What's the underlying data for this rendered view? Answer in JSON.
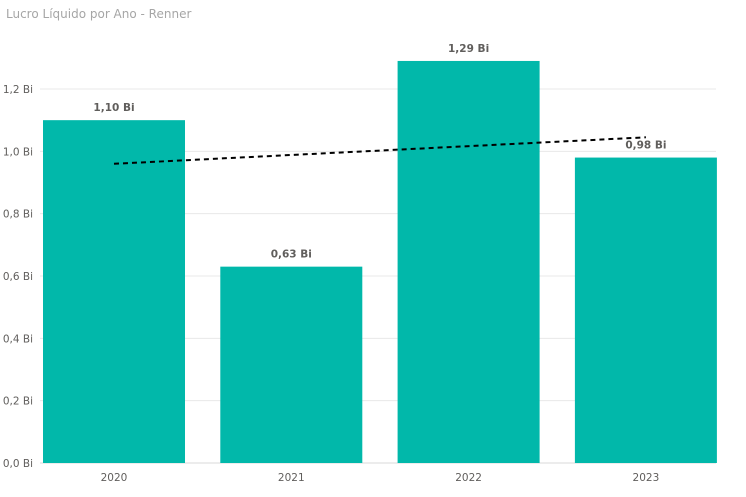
{
  "chart_data": {
    "type": "bar",
    "title": "Lucro Líquido por Ano - Renner",
    "categories": [
      "2020",
      "2021",
      "2022",
      "2023"
    ],
    "values": [
      1.1,
      0.63,
      1.29,
      0.98
    ],
    "data_labels": [
      "1,10 Bi",
      "0,63 Bi",
      "1,29 Bi",
      "0,98 Bi"
    ],
    "yticks": [
      0,
      0.2,
      0.4,
      0.6,
      0.8,
      1.0,
      1.2
    ],
    "ytick_labels": [
      "0,0 Bi",
      "0,2 Bi",
      "0,4 Bi",
      "0,6 Bi",
      "0,8 Bi",
      "1,0 Bi",
      "1,2 Bi"
    ],
    "ylim": [
      0,
      1.4
    ],
    "xlabel": "",
    "ylabel": "",
    "grid": true,
    "trend_line": {
      "start": 0.96,
      "end": 1.045,
      "style": "dashed",
      "color": "#000000"
    },
    "colors": {
      "bar": "#01B8AA",
      "grid": "#e8e8e8",
      "axis_text": "#605e5c",
      "title": "#a6a6a6"
    }
  }
}
